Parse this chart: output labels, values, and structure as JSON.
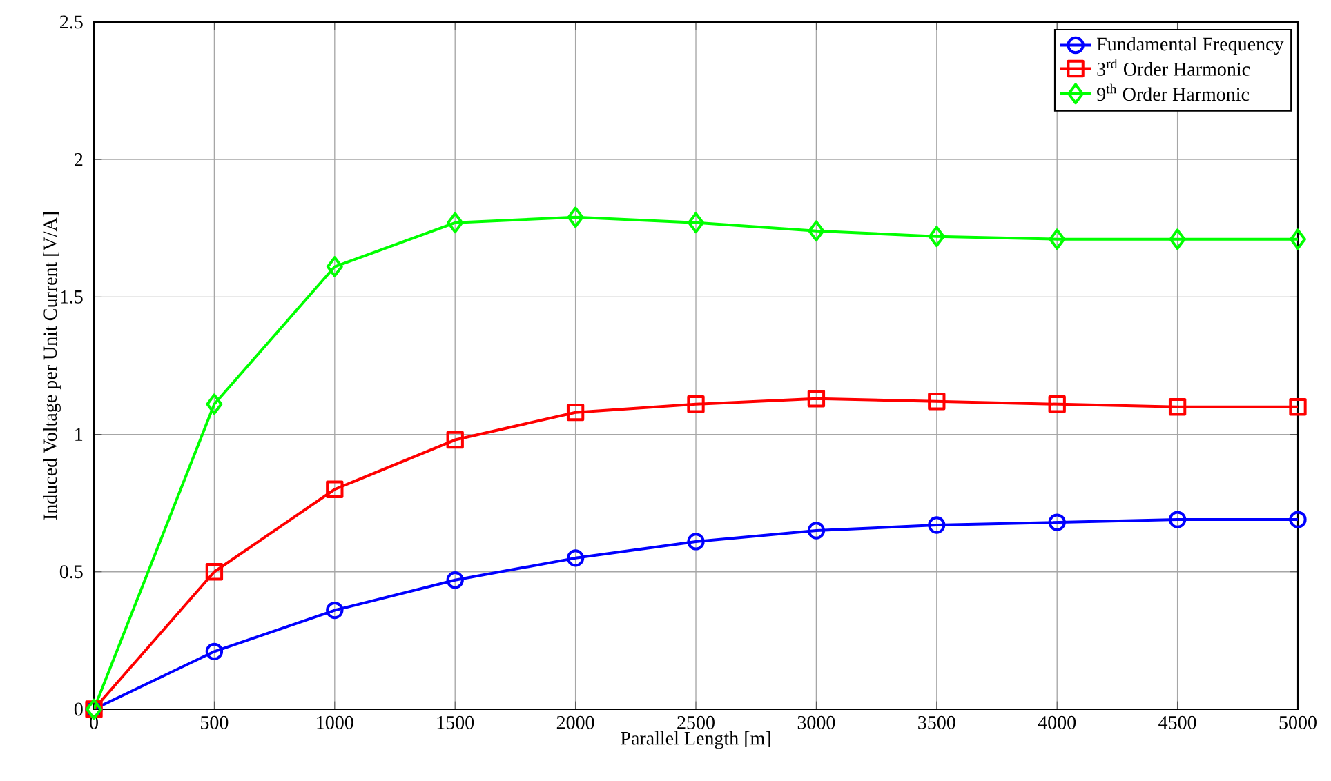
{
  "chart_data": {
    "type": "line",
    "xlabel": "Parallel Length [m]",
    "ylabel": "Induced Voltage per Unit Current [V/A]",
    "x": [
      0,
      500,
      1000,
      1500,
      2000,
      2500,
      3000,
      3500,
      4000,
      4500,
      5000
    ],
    "series": [
      {
        "name": "Fundamental Frequency",
        "color": "#0000ff",
        "marker": "circle",
        "values": [
          0,
          0.21,
          0.36,
          0.47,
          0.55,
          0.61,
          0.65,
          0.67,
          0.68,
          0.69,
          0.69
        ]
      },
      {
        "name": "3$^{rd}$ Order Harmonic",
        "color": "#ff0000",
        "marker": "square",
        "values": [
          0,
          0.5,
          0.8,
          0.98,
          1.08,
          1.11,
          1.13,
          1.12,
          1.11,
          1.1,
          1.1
        ]
      },
      {
        "name": "9$^{th}$ Order Harmonic",
        "color": "#00ff00",
        "marker": "diamond",
        "values": [
          0,
          1.11,
          1.61,
          1.77,
          1.79,
          1.77,
          1.74,
          1.72,
          1.71,
          1.71,
          1.71
        ]
      }
    ],
    "xlim": [
      0,
      5000
    ],
    "xticks": [
      0,
      500,
      1000,
      1500,
      2000,
      2500,
      3000,
      3500,
      4000,
      4500,
      5000
    ],
    "ylim": [
      0,
      2.5
    ],
    "yticks": [
      0,
      0.5,
      1,
      1.5,
      2,
      2.5
    ],
    "grid": true,
    "legend": "top right",
    "line_style": "solid"
  }
}
